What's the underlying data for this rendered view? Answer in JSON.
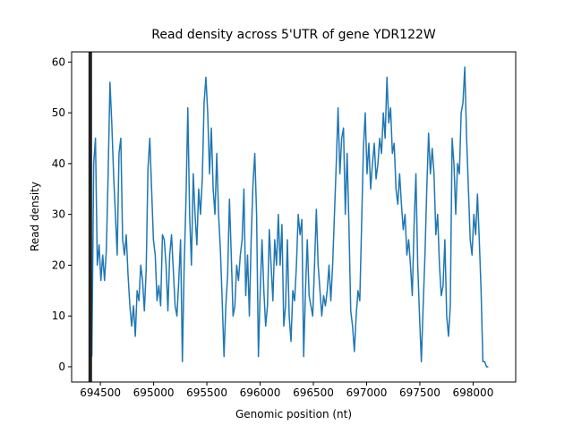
{
  "chart_data": {
    "type": "line",
    "title": "Read density across 5'UTR of gene YDR122W",
    "x_label": "Genomic position (nt)",
    "y_label": "Read density",
    "xlim": [
      694230,
      698400
    ],
    "ylim": [
      -3,
      62
    ],
    "xticks": [
      694500,
      695000,
      695500,
      696000,
      696500,
      697000,
      697500,
      698000
    ],
    "yticks": [
      0,
      10,
      20,
      30,
      40,
      50,
      60
    ],
    "vlines": [
      {
        "x": 694405,
        "color": "#222222"
      }
    ],
    "series": [
      {
        "color": "#1f77b4",
        "x": [
          694420,
          694437,
          694454,
          694471,
          694488,
          694505,
          694522,
          694539,
          694556,
          694573,
          694590,
          694607,
          694624,
          694641,
          694658,
          694675,
          694692,
          694709,
          694726,
          694743,
          694760,
          694777,
          694794,
          694811,
          694828,
          694845,
          694862,
          694879,
          694896,
          694913,
          694930,
          694947,
          694964,
          694981,
          694998,
          695015,
          695032,
          695049,
          695066,
          695083,
          695100,
          695117,
          695134,
          695151,
          695168,
          695185,
          695202,
          695219,
          695236,
          695253,
          695270,
          695287,
          695304,
          695321,
          695338,
          695355,
          695372,
          695389,
          695406,
          695423,
          695440,
          695457,
          695474,
          695491,
          695508,
          695525,
          695542,
          695559,
          695576,
          695593,
          695610,
          695627,
          695644,
          695661,
          695678,
          695695,
          695712,
          695729,
          695746,
          695763,
          695780,
          695797,
          695814,
          695831,
          695848,
          695865,
          695882,
          695899,
          695916,
          695933,
          695950,
          695967,
          695984,
          696001,
          696018,
          696035,
          696052,
          696069,
          696086,
          696103,
          696120,
          696137,
          696154,
          696171,
          696188,
          696205,
          696222,
          696239,
          696256,
          696273,
          696290,
          696307,
          696324,
          696341,
          696358,
          696375,
          696392,
          696409,
          696426,
          696443,
          696460,
          696477,
          696494,
          696511,
          696528,
          696545,
          696562,
          696579,
          696596,
          696613,
          696630,
          696647,
          696664,
          696681,
          696698,
          696715,
          696732,
          696749,
          696766,
          696783,
          696800,
          696817,
          696834,
          696851,
          696868,
          696885,
          696902,
          696919,
          696936,
          696953,
          696970,
          696987,
          697004,
          697021,
          697038,
          697055,
          697072,
          697089,
          697106,
          697123,
          697140,
          697157,
          697174,
          697191,
          697208,
          697225,
          697242,
          697259,
          697276,
          697293,
          697310,
          697327,
          697344,
          697361,
          697378,
          697395,
          697412,
          697429,
          697446,
          697463,
          697480,
          697497,
          697514,
          697531,
          697548,
          697565,
          697582,
          697599,
          697616,
          697633,
          697650,
          697667,
          697684,
          697701,
          697718,
          697735,
          697752,
          697769,
          697786,
          697803,
          697820,
          697837,
          697854,
          697871,
          697888,
          697905,
          697922,
          697939,
          697956,
          697973,
          697990,
          698007,
          698024,
          698041,
          698058,
          698075,
          698092,
          698109,
          698126,
          698143
        ],
        "values": [
          2,
          40,
          45,
          20,
          24,
          17,
          22,
          17,
          23,
          38,
          56,
          48,
          38,
          30,
          22,
          42,
          45,
          25,
          22,
          26,
          18,
          12,
          8,
          12,
          6,
          15,
          13,
          20,
          17,
          11,
          19,
          39,
          45,
          35,
          25,
          22,
          13,
          16,
          12,
          26,
          25,
          20,
          11,
          22,
          26,
          19,
          12,
          10,
          17,
          25,
          1,
          20,
          33,
          51,
          30,
          20,
          38,
          30,
          24,
          35,
          30,
          37,
          52,
          57,
          50,
          38,
          47,
          35,
          30,
          42,
          30,
          23,
          13,
          2,
          12,
          18,
          33,
          22,
          10,
          12,
          20,
          17,
          22,
          25,
          35,
          14,
          22,
          10,
          25,
          36,
          42,
          30,
          2,
          15,
          25,
          15,
          8,
          12,
          27,
          20,
          13,
          25,
          20,
          30,
          20,
          28,
          8,
          12,
          25,
          10,
          5,
          15,
          13,
          20,
          30,
          26,
          29,
          2,
          15,
          25,
          14,
          12,
          10,
          20,
          31,
          20,
          15,
          10,
          14,
          12,
          15,
          20,
          13,
          20,
          30,
          40,
          51,
          38,
          45,
          47,
          30,
          42,
          28,
          11,
          8,
          3,
          10,
          15,
          13,
          28,
          43,
          50,
          38,
          44,
          35,
          40,
          44,
          37,
          40,
          45,
          42,
          50,
          45,
          57,
          48,
          51,
          42,
          44,
          35,
          32,
          38,
          32,
          27,
          30,
          22,
          25,
          20,
          14,
          28,
          38,
          20,
          10,
          1,
          12,
          22,
          35,
          46,
          38,
          43,
          38,
          26,
          30,
          20,
          14,
          16,
          25,
          10,
          6,
          12,
          45,
          40,
          30,
          40,
          38,
          50,
          52,
          59,
          45,
          35,
          25,
          22,
          30,
          26,
          34,
          25,
          15,
          1,
          1,
          0,
          0
        ]
      }
    ]
  }
}
